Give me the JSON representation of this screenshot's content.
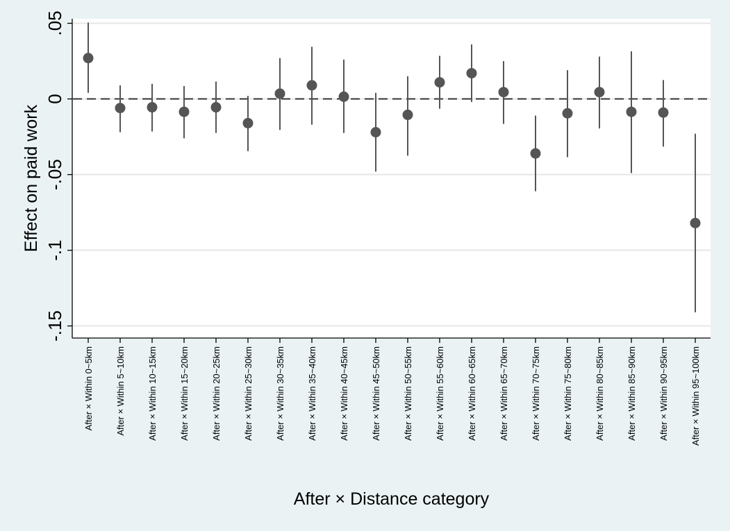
{
  "chart_data": {
    "type": "scatter",
    "subtype": "coefficient-plot-with-confidence-intervals",
    "xlabel": "After × Distance category",
    "ylabel": "Effect on paid work",
    "ylim": [
      -0.158,
      0.053
    ],
    "yticks": [
      0.05,
      0,
      -0.05,
      -0.1,
      -0.15
    ],
    "ytick_labels": [
      ".05",
      "0",
      "-.05",
      "-.1",
      "-.15"
    ],
    "grid": true,
    "reference_line": {
      "y": 0,
      "style": "dashed"
    },
    "categories": [
      "After × Within 0~5km",
      "After × Within 5~10km",
      "After × Within 10~15km",
      "After × Within 15~20km",
      "After × Within 20~25km",
      "After × Within 25~30km",
      "After × Within 30~35km",
      "After × Within 35~40km",
      "After × Within 40~45km",
      "After × Within 45~50km",
      "After × Within 50~55km",
      "After × Within 55~60km",
      "After × Within 60~65km",
      "After × Within 65~70km",
      "After × Within 70~75km",
      "After × Within 75~80km",
      "After × Within 80~85km",
      "After × Within 85~90km",
      "After × Within 90~95km",
      "After × Within 95~100km"
    ],
    "estimates": [
      0.027,
      -0.006,
      -0.0055,
      -0.0085,
      -0.0055,
      -0.016,
      0.0035,
      0.009,
      0.0015,
      -0.022,
      -0.0105,
      0.011,
      0.017,
      0.0045,
      -0.036,
      -0.0095,
      0.0045,
      -0.0085,
      -0.009,
      -0.082
    ],
    "ci_lower": [
      0.004,
      -0.022,
      -0.0215,
      -0.026,
      -0.0225,
      -0.0345,
      -0.0205,
      -0.017,
      -0.0225,
      -0.048,
      -0.0375,
      -0.0065,
      -0.002,
      -0.0165,
      -0.061,
      -0.0385,
      -0.0195,
      -0.049,
      -0.0315,
      -0.141
    ],
    "ci_upper": [
      0.0505,
      0.009,
      0.01,
      0.0085,
      0.0115,
      0.002,
      0.027,
      0.0345,
      0.026,
      0.004,
      0.015,
      0.0285,
      0.036,
      0.025,
      -0.011,
      0.019,
      0.028,
      0.0315,
      0.0125,
      -0.023
    ],
    "colors": {
      "background": "#eaf2f3",
      "plot_area": "#ffffff",
      "marker": "#555555",
      "ci_line": "#555555",
      "gridline": "#e6e6e6",
      "axis": "#000000"
    }
  }
}
